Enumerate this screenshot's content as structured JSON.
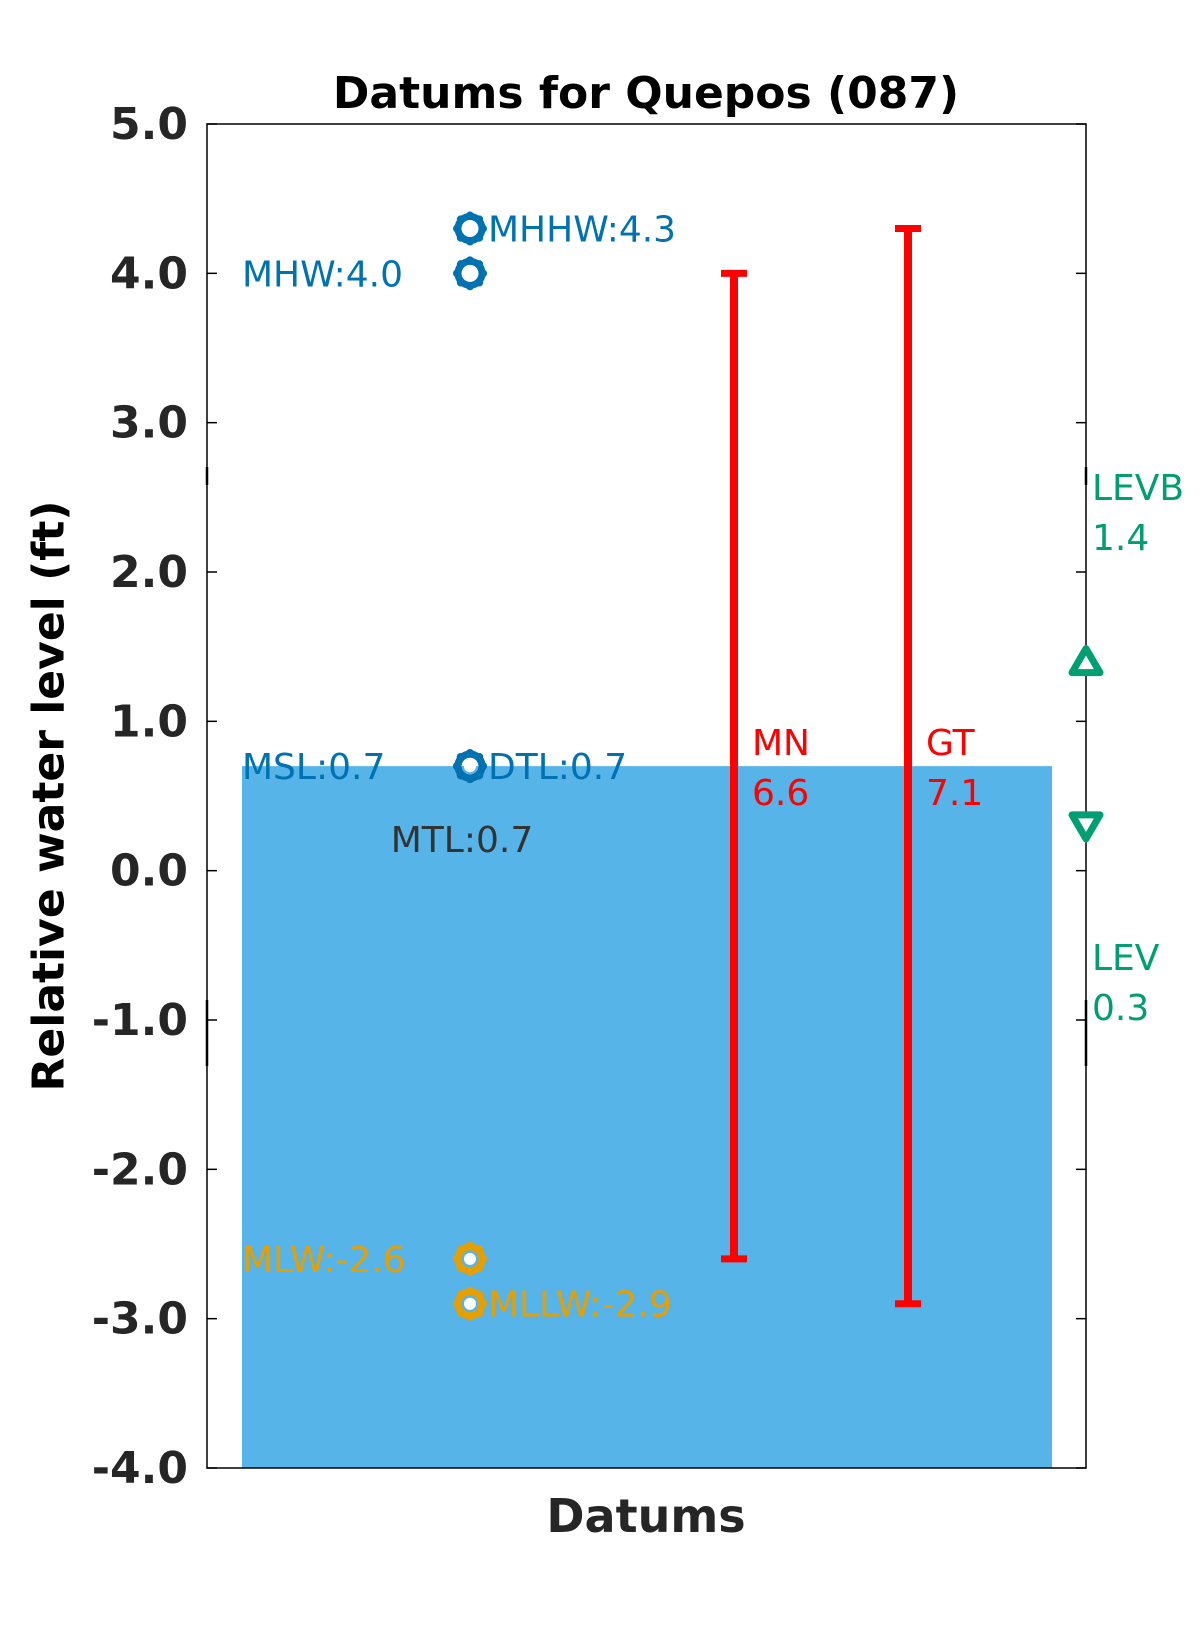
{
  "chart_data": {
    "type": "scatter",
    "title": "Datums for Quepos (087)",
    "xlabel": "Datums",
    "ylabel": "Relative water level (ft)",
    "ylim": [
      -4.0,
      5.0
    ],
    "yticks": [
      "5.0",
      "4.0",
      "3.0",
      "2.0",
      "1.0",
      "0.0",
      "-1.0",
      "-2.0",
      "-3.0",
      "-4.0"
    ],
    "grid": false,
    "water_fill": {
      "level": 0.7,
      "color": "#56b4e9"
    },
    "datums": [
      {
        "name": "MHHW",
        "value": 4.3,
        "label": "MHHW:4.3",
        "color": "#0072b2",
        "label_side": "right"
      },
      {
        "name": "MHW",
        "value": 4.0,
        "label": "MHW:4.0",
        "color": "#0072b2",
        "label_side": "left"
      },
      {
        "name": "DTL",
        "value": 0.7,
        "label": "DTL:0.7",
        "color": "#0072b2",
        "label_side": "right"
      },
      {
        "name": "MSL",
        "value": 0.7,
        "label": "MSL:0.7",
        "color": "#0072b2",
        "label_side": "left"
      },
      {
        "name": "MTL",
        "value": 0.7,
        "label": "MTL:0.7",
        "color": "#333333",
        "label_side": "below"
      },
      {
        "name": "MLW",
        "value": -2.6,
        "label": "MLW:-2.6",
        "color": "#e69f00",
        "label_side": "left"
      },
      {
        "name": "MLLW",
        "value": -2.9,
        "label": "MLLW:-2.9",
        "color": "#e69f00",
        "label_side": "right"
      }
    ],
    "ranges": [
      {
        "name": "MN",
        "value": "6.6",
        "low": -2.6,
        "high": 4.0,
        "color": "#ff0000"
      },
      {
        "name": "GT",
        "value": "7.1",
        "low": -2.9,
        "high": 4.3,
        "color": "#ff0000"
      }
    ],
    "extremes": [
      {
        "name": "LEVB",
        "value": "1.4",
        "level": 1.4,
        "marker": "triangle-up",
        "color": "#009e73"
      },
      {
        "name": "LEV",
        "value": "0.3",
        "level": 0.3,
        "marker": "triangle-down",
        "color": "#009e73"
      }
    ]
  }
}
